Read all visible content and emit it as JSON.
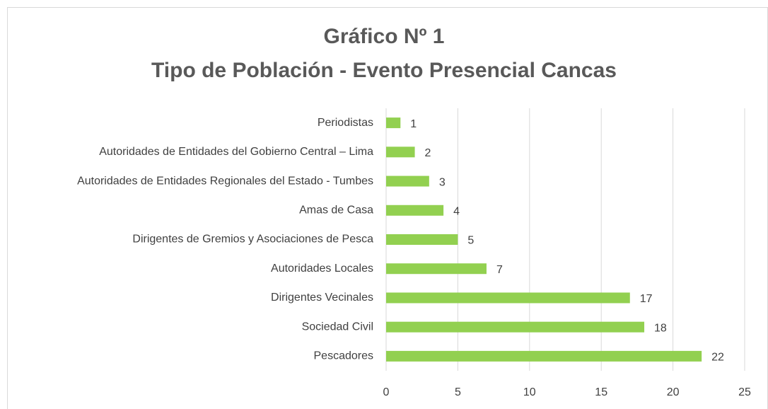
{
  "chart_data": {
    "type": "barh",
    "title": "Gráfico Nº 1",
    "subtitle": "Tipo de Población - Evento Presencial Cancas",
    "categories": [
      "Periodistas",
      "Autoridades de Entidades del Gobierno Central – Lima",
      "Autoridades de Entidades Regionales del Estado - Tumbes",
      "Amas de Casa",
      "Dirigentes de Gremios y Asociaciones de Pesca",
      "Autoridades Locales",
      "Dirigentes Vecinales",
      "Sociedad Civil",
      "Pescadores"
    ],
    "values": [
      1,
      2,
      3,
      4,
      5,
      7,
      17,
      18,
      22
    ],
    "color": "#92d050",
    "xlim": [
      0,
      25
    ],
    "xticks": [
      0,
      5,
      10,
      15,
      20,
      25
    ],
    "grid": true
  }
}
